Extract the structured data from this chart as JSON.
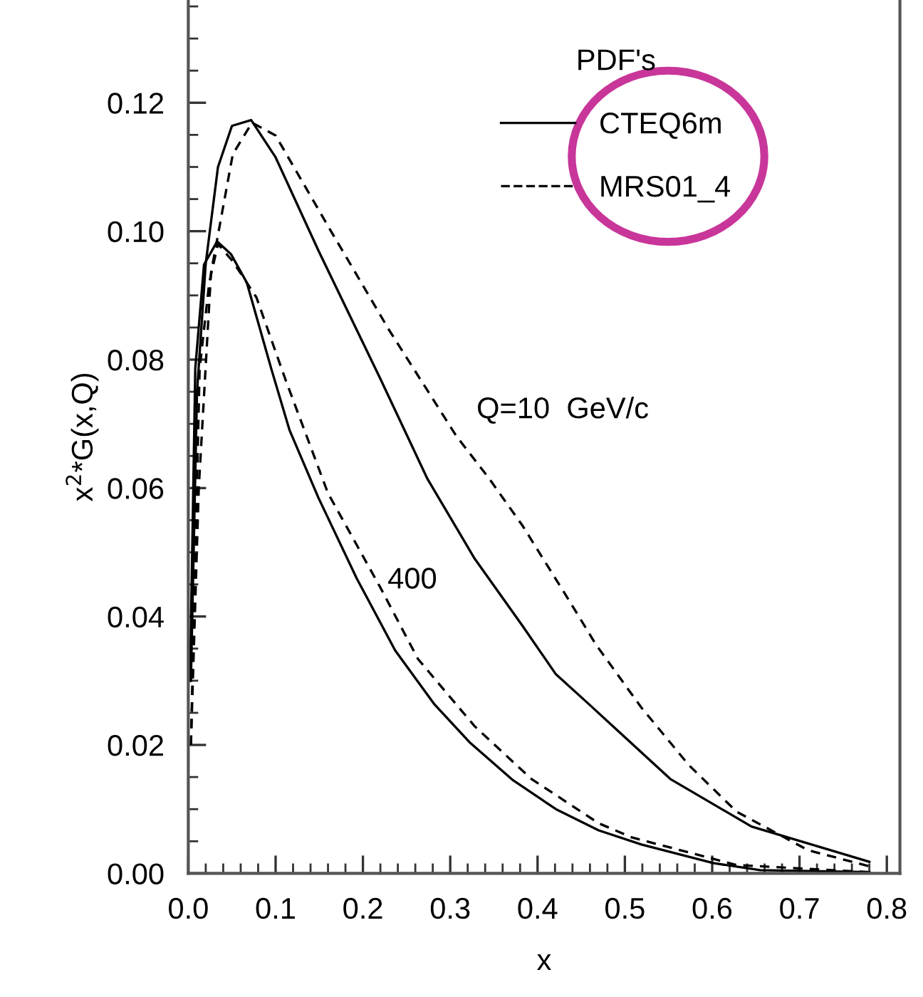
{
  "chart_data": {
    "type": "line",
    "xlabel": "x",
    "ylabel": "x$^{2}$*G(x,Q)",
    "legend_title": "PDF's",
    "xlim": [
      0,
      0.815
    ],
    "ylim": [
      0,
      0.136
    ],
    "xticks": [
      {
        "value": 0,
        "label": "0.0"
      },
      0.1,
      0.2,
      0.3,
      0.4,
      0.5,
      0.6,
      0.7,
      0.8
    ],
    "yticks": [
      {
        "value": 0,
        "label": "0.00"
      },
      0.02,
      0.04,
      0.06,
      0.08,
      {
        "value": 0.1,
        "label": "0.10"
      },
      0.12
    ],
    "grid": false,
    "legend": "top right",
    "marker": "none",
    "series": [
      {
        "name": "CTEQ6m",
        "color": "#000000",
        "line_style": "solid",
        "x": [
          0.003,
          0.01,
          0.02,
          0.034,
          0.05,
          0.072,
          0.1,
          0.149,
          0.22,
          0.274,
          0.328,
          0.383,
          0.421,
          0.46,
          0.552,
          0.645,
          0.78
        ],
        "values": [
          0.03,
          0.075,
          0.095,
          0.11,
          0.1164,
          0.1173,
          0.1115,
          0.097,
          0.077,
          0.0614,
          0.049,
          0.0385,
          0.031,
          0.0262,
          0.0147,
          0.0073,
          0.0018
        ]
      },
      {
        "name": "MRS01_4",
        "color": "#000000",
        "line_style": "dashed",
        "x": [
          0.003,
          0.012,
          0.026,
          0.041,
          0.051,
          0.073,
          0.1,
          0.16,
          0.23,
          0.307,
          0.345,
          0.383,
          0.437,
          0.467,
          0.519,
          0.573,
          0.628,
          0.71,
          0.78
        ],
        "values": [
          0.02,
          0.06,
          0.0935,
          0.1046,
          0.112,
          0.1169,
          0.1149,
          0.1008,
          0.0846,
          0.0681,
          0.0614,
          0.0541,
          0.0423,
          0.0356,
          0.0258,
          0.0169,
          0.0096,
          0.0036,
          0.0011
        ]
      },
      {
        "color": "#000000",
        "line_style": "solid",
        "x": [
          0.002,
          0.008,
          0.018,
          0.033,
          0.049,
          0.067,
          0.095,
          0.116,
          0.149,
          0.193,
          0.237,
          0.282,
          0.323,
          0.372,
          0.421,
          0.47,
          0.519,
          0.601,
          0.655,
          0.78
        ],
        "values": [
          0.03,
          0.0786,
          0.0948,
          0.0984,
          0.0964,
          0.092,
          0.0786,
          0.069,
          0.0585,
          0.0459,
          0.0347,
          0.0263,
          0.0203,
          0.0145,
          0.01,
          0.0067,
          0.0045,
          0.0016,
          0.0005,
          0.0002
        ]
      },
      {
        "color": "#000000",
        "line_style": "dashed",
        "x": [
          0.003,
          0.013,
          0.024,
          0.034,
          0.051,
          0.078,
          0.111,
          0.16,
          0.22,
          0.263,
          0.328,
          0.393,
          0.47,
          0.508,
          0.628,
          0.78
        ],
        "values": [
          0.02,
          0.0786,
          0.092,
          0.098,
          0.0953,
          0.0897,
          0.077,
          0.0592,
          0.0445,
          0.0334,
          0.0229,
          0.0147,
          0.0078,
          0.0056,
          0.0013,
          0.0002
        ]
      }
    ],
    "annotations": [
      "Q=10  GeV/c",
      "400"
    ]
  }
}
